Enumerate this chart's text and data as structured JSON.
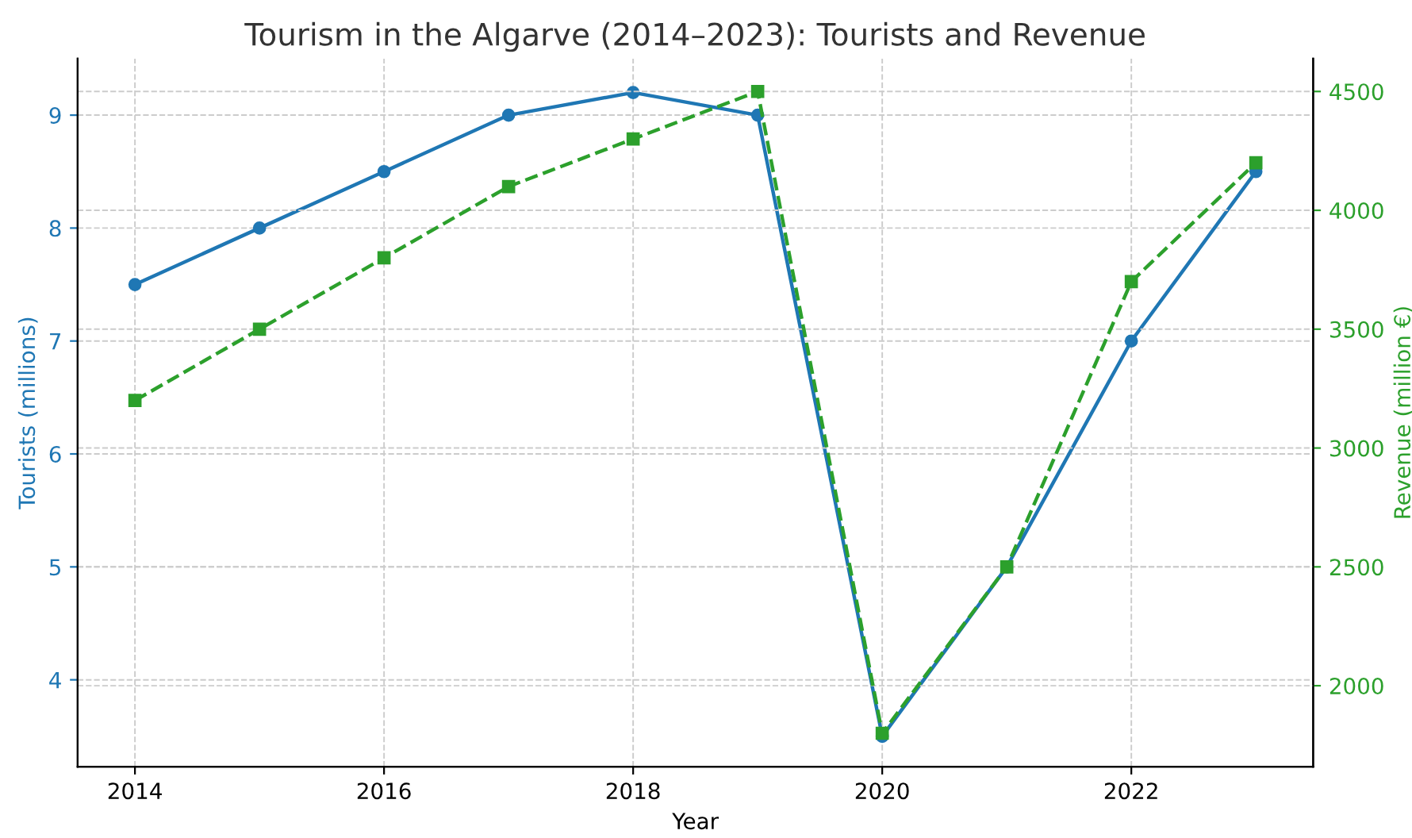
{
  "chart_data": {
    "type": "line",
    "title": "Tourism in the Algarve (2014–2023): Tourists and Revenue",
    "xlabel": "Year",
    "ylabel": "Tourists (millions)",
    "y2label": "Revenue (million €)",
    "x": [
      2014,
      2015,
      2016,
      2017,
      2018,
      2019,
      2020,
      2021,
      2022,
      2023
    ],
    "series": [
      {
        "color": "#1f77b4",
        "marker": "circle",
        "line_style": "solid",
        "values": [
          7.5,
          8.0,
          8.5,
          9.0,
          9.2,
          9.0,
          3.5,
          5.0,
          7.0,
          8.5
        ]
      },
      {
        "color": "#2ca02c",
        "marker": "square",
        "line_style": "dashed",
        "axis": "y2",
        "values": [
          3200,
          3500,
          3800,
          4100,
          4300,
          4500,
          1800,
          2500,
          3700,
          4200
        ]
      }
    ],
    "xlim": [
      2013.54,
      2023.46
    ],
    "xticks": [
      2014,
      2016,
      2018,
      2020,
      2022
    ],
    "ylim": [
      3.23,
      9.5
    ],
    "yticks": [
      4,
      5,
      6,
      7,
      8,
      9
    ],
    "y2lim": [
      1659,
      4638
    ],
    "y2ticks": [
      2000,
      2500,
      3000,
      3500,
      4000,
      4500
    ],
    "grid": true
  }
}
